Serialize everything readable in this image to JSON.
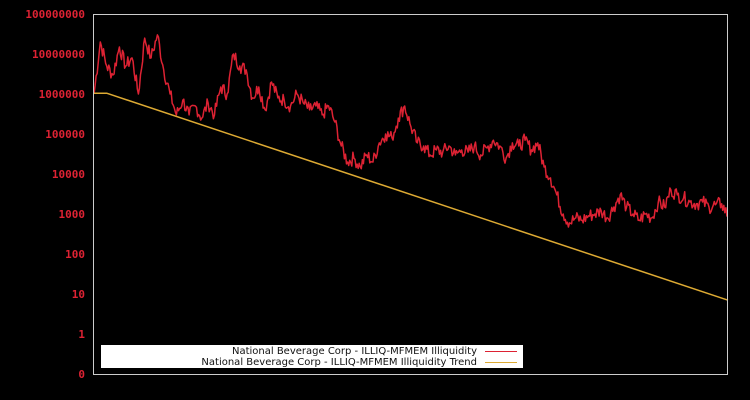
{
  "chart_data": {
    "type": "line",
    "title": "",
    "xlabel": "",
    "ylabel": "",
    "yscale": "log",
    "ylim": [
      0,
      100000000
    ],
    "y_ticks": [
      "100000000",
      "10000000",
      "1000000",
      "100000",
      "10000",
      "1000",
      "100",
      "10",
      "1",
      "0"
    ],
    "x_ticks": [],
    "grid": false,
    "background": "#000000",
    "axis_color": "#cccccc",
    "tick_label_color": "#dd2233",
    "legend_position": "lower-left",
    "series": [
      {
        "name": "National Beverage Corp - ILLIQ-MFMEM Illiquidity",
        "color": "#dd2233",
        "x": [
          0,
          1,
          2,
          3,
          4,
          5,
          6,
          7,
          8,
          9,
          10,
          11,
          12,
          13,
          14,
          15,
          16,
          17,
          18,
          19,
          20,
          21,
          22,
          23,
          24,
          25,
          26,
          27,
          28,
          29,
          30,
          31,
          32,
          33,
          34,
          35,
          36,
          37,
          38,
          39,
          40,
          41,
          42,
          43,
          44,
          45,
          46,
          47,
          48,
          49,
          50,
          51,
          52,
          53,
          54,
          55,
          56,
          57,
          58,
          59,
          60,
          61,
          62,
          63,
          64,
          65,
          66,
          67,
          68,
          69,
          70,
          71,
          72,
          73,
          74,
          75,
          76,
          77,
          78,
          79,
          80,
          81,
          82,
          83,
          84,
          85,
          86,
          87,
          88,
          89,
          90,
          91,
          92,
          93,
          94,
          95,
          96,
          97,
          98,
          99,
          100
        ],
        "values": [
          1000000,
          20000000,
          5000000,
          3000000,
          15000000,
          5000000,
          8000000,
          1000000,
          25000000,
          8000000,
          30000000,
          4000000,
          1000000,
          300000,
          700000,
          300000,
          500000,
          250000,
          600000,
          300000,
          1500000,
          1000000,
          10000000,
          5000000,
          4000000,
          800000,
          1500000,
          400000,
          2000000,
          800000,
          700000,
          500000,
          1000000,
          600000,
          400000,
          500000,
          300000,
          500000,
          200000,
          50000,
          20000,
          25000,
          15000,
          30000,
          20000,
          60000,
          100000,
          80000,
          250000,
          500000,
          150000,
          60000,
          50000,
          30000,
          40000,
          35000,
          50000,
          30000,
          40000,
          35000,
          50000,
          30000,
          45000,
          70000,
          50000,
          25000,
          60000,
          50000,
          70000,
          40000,
          60000,
          15000,
          8000,
          3000,
          1000,
          600,
          800,
          700,
          900,
          1000,
          1200,
          800,
          1500,
          3000,
          1500,
          1000,
          700,
          1000,
          800,
          2000,
          1500,
          4000,
          3000,
          2500,
          2000,
          1800,
          2000,
          1500,
          1700,
          1800,
          900
        ]
      },
      {
        "name": "National Beverage Corp - ILLIQ-MFMEM Illiquidity Trend",
        "color": "#ddaa33",
        "x": [
          0,
          2,
          100
        ],
        "values": [
          1050000,
          1050000,
          7
        ]
      }
    ]
  },
  "legend": {
    "items": [
      {
        "label": "National Beverage Corp - ILLIQ-MFMEM Illiquidity",
        "color": "#dd2233"
      },
      {
        "label": "National Beverage Corp - ILLIQ-MFMEM Illiquidity Trend",
        "color": "#ddaa33"
      }
    ]
  }
}
